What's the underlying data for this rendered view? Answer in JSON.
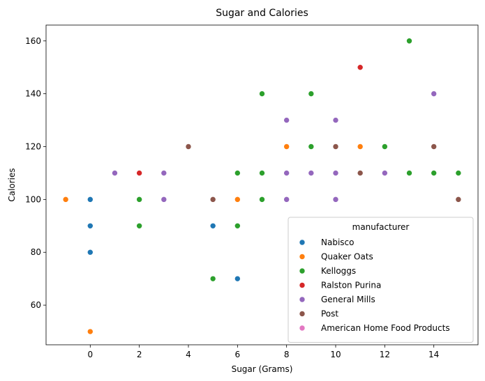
{
  "chart_data": {
    "type": "scatter",
    "title": "Sugar and Calories",
    "xlabel": "Sugar (Grams)",
    "ylabel": "Calories",
    "xlim": [
      -1.8,
      15.8
    ],
    "ylim": [
      45,
      166
    ],
    "xticks": [
      0,
      2,
      4,
      6,
      8,
      10,
      12,
      14
    ],
    "yticks": [
      60,
      80,
      100,
      120,
      140,
      160
    ],
    "grid": false,
    "legend": {
      "title": "manufacturer",
      "placement": "lower-right"
    },
    "series": [
      {
        "name": "Nabisco",
        "color": "#1f77b4",
        "points": [
          [
            0,
            100
          ],
          [
            0,
            90
          ],
          [
            0,
            80
          ],
          [
            5,
            90
          ],
          [
            6,
            70
          ]
        ]
      },
      {
        "name": "Quaker Oats",
        "color": "#ff7f0e",
        "points": [
          [
            -1,
            100
          ],
          [
            0,
            50
          ],
          [
            6,
            100
          ],
          [
            8,
            120
          ],
          [
            11,
            120
          ]
        ]
      },
      {
        "name": "Kelloggs",
        "color": "#2ca02c",
        "points": [
          [
            2,
            100
          ],
          [
            2,
            90
          ],
          [
            5,
            70
          ],
          [
            6,
            110
          ],
          [
            6,
            90
          ],
          [
            7,
            140
          ],
          [
            7,
            110
          ],
          [
            7,
            100
          ],
          [
            9,
            140
          ],
          [
            9,
            120
          ],
          [
            12,
            120
          ],
          [
            13,
            160
          ],
          [
            13,
            110
          ],
          [
            14,
            110
          ],
          [
            15,
            110
          ]
        ]
      },
      {
        "name": "Ralston Purina",
        "color": "#d62728",
        "points": [
          [
            2,
            110
          ],
          [
            11,
            150
          ]
        ]
      },
      {
        "name": "General Mills",
        "color": "#9467bd",
        "points": [
          [
            1,
            110
          ],
          [
            3,
            110
          ],
          [
            3,
            100
          ],
          [
            8,
            130
          ],
          [
            8,
            110
          ],
          [
            8,
            100
          ],
          [
            9,
            110
          ],
          [
            10,
            130
          ],
          [
            10,
            110
          ],
          [
            10,
            100
          ],
          [
            12,
            110
          ],
          [
            14,
            140
          ]
        ]
      },
      {
        "name": "Post",
        "color": "#8c564b",
        "points": [
          [
            4,
            120
          ],
          [
            5,
            100
          ],
          [
            10,
            120
          ],
          [
            11,
            110
          ],
          [
            14,
            120
          ],
          [
            15,
            100
          ]
        ]
      },
      {
        "name": "American Home Food Products",
        "color": "#e377c2",
        "points": []
      }
    ]
  }
}
